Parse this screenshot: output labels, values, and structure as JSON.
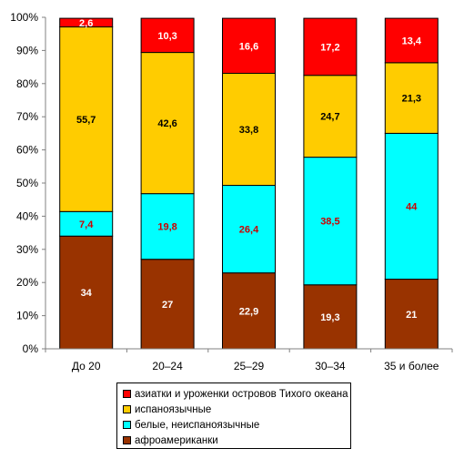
{
  "chart_data": {
    "type": "bar",
    "stacked": "percent",
    "categories": [
      "До 20",
      "20–24",
      "25–29",
      "30–34",
      "35 и более"
    ],
    "series": [
      {
        "name": "афроамериканки",
        "color": "#993300",
        "label_color": "#ffffff",
        "values": [
          34,
          27,
          22.9,
          19.3,
          21
        ]
      },
      {
        "name": "белые, неиспаноязычные",
        "color": "#00ffff",
        "label_color": "#cc0000",
        "values": [
          7.4,
          19.8,
          26.4,
          38.5,
          44
        ]
      },
      {
        "name": "испаноязычные",
        "color": "#ffcc00",
        "label_color": "#000000",
        "values": [
          55.7,
          42.6,
          33.8,
          24.7,
          21.3
        ]
      },
      {
        "name": "азиатки и уроженки островов Тихого океана",
        "color": "#ff0000",
        "label_color": "#ffffff",
        "values": [
          2.6,
          10.3,
          16.6,
          17.2,
          13.4
        ]
      }
    ],
    "data_labels": [
      [
        "34",
        "27",
        "22,9",
        "19,3",
        "21"
      ],
      [
        "7,4",
        "19,8",
        "26,4",
        "38,5",
        "44"
      ],
      [
        "55,7",
        "42,6",
        "33,8",
        "24,7",
        "21,3"
      ],
      [
        "2,6",
        "10,3",
        "16,6",
        "17,2",
        "13,4"
      ]
    ],
    "ylim": [
      0,
      100
    ],
    "y_ticks": [
      "0%",
      "10%",
      "20%",
      "30%",
      "40%",
      "50%",
      "60%",
      "70%",
      "80%",
      "90%",
      "100%"
    ],
    "grid": false,
    "legend_position": "bottom"
  }
}
